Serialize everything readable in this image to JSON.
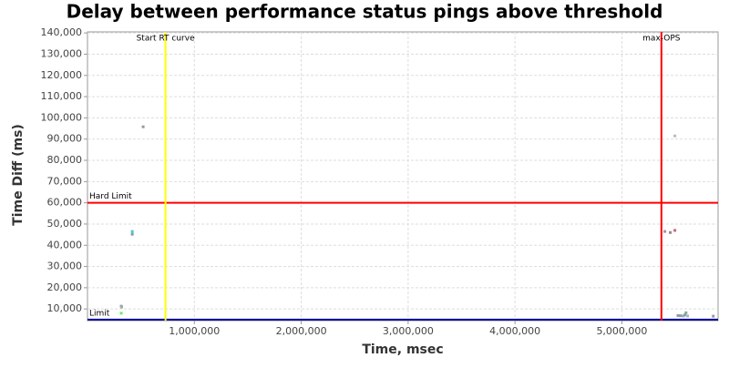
{
  "chart_data": {
    "type": "scatter",
    "title": "Delay between performance status pings above threshold",
    "xlabel": "Time, msec",
    "ylabel": "Time Diff (ms)",
    "xlim": [
      0,
      5900000
    ],
    "ylim": [
      4500,
      140500
    ],
    "xticks": [
      {
        "value": 1000000,
        "label": "1,000,000"
      },
      {
        "value": 2000000,
        "label": "2,000,000"
      },
      {
        "value": 3000000,
        "label": "3,000,000"
      },
      {
        "value": 4000000,
        "label": "4,000,000"
      },
      {
        "value": 5000000,
        "label": "5,000,000"
      }
    ],
    "yticks": [
      {
        "value": 10000,
        "label": "10,000"
      },
      {
        "value": 20000,
        "label": "20,000"
      },
      {
        "value": 30000,
        "label": "30,000"
      },
      {
        "value": 40000,
        "label": "40,000"
      },
      {
        "value": 50000,
        "label": "50,000"
      },
      {
        "value": 60000,
        "label": "60,000"
      },
      {
        "value": 70000,
        "label": "70,000"
      },
      {
        "value": 80000,
        "label": "80,000"
      },
      {
        "value": 90000,
        "label": "90,000"
      },
      {
        "value": 100000,
        "label": "100,000"
      },
      {
        "value": 110000,
        "label": "110,000"
      },
      {
        "value": 120000,
        "label": "120,000"
      },
      {
        "value": 130000,
        "label": "130,000"
      },
      {
        "value": 140000,
        "label": "140,000"
      }
    ],
    "grid": true,
    "x": [
      316000,
      320000,
      316000,
      419000,
      419000,
      521000,
      5496000,
      5402000,
      5453000,
      5496000,
      5525000,
      5550000,
      5575000,
      5590000,
      5600000,
      5615000,
      5855000
    ],
    "values": [
      11300,
      10900,
      8000,
      46500,
      45200,
      95800,
      91500,
      46500,
      46000,
      47000,
      6900,
      6800,
      6700,
      7200,
      8200,
      6700,
      6600
    ],
    "colors": [
      "#8899bb",
      "#aaaaaa",
      "#66ee66",
      "#44cccc",
      "#8899aa",
      "#999999",
      "#bbbbbb",
      "#bb8899",
      "#998888",
      "#cc6677",
      "#8899aa",
      "#999999",
      "#aaaaaa",
      "#66aacc",
      "#88aa88",
      "#bbaacc",
      "#999999"
    ],
    "vlines": [
      {
        "label": "Start RT curve",
        "x": 730000,
        "color": "#ffff00"
      },
      {
        "label": "max-OPS",
        "x": 5370000,
        "color": "#ff0000"
      }
    ],
    "hlines": [
      {
        "label": "Hard Limit",
        "y": 60000,
        "color": "#ff0000"
      },
      {
        "label": "Limit",
        "y": 5000,
        "color": "#000099"
      }
    ]
  }
}
